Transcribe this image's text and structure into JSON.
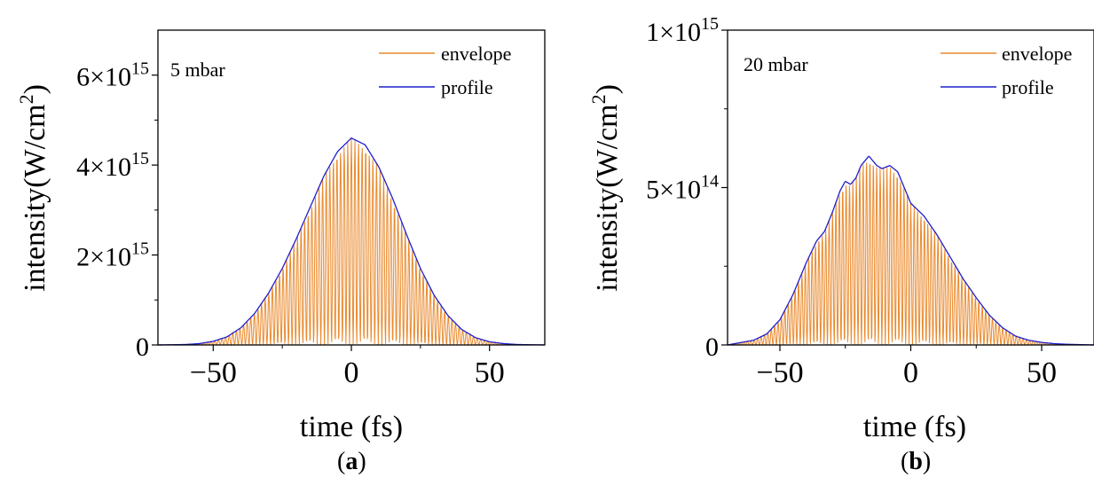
{
  "colors": {
    "envelope": "#E98A2E",
    "profile": "#1F1FCC",
    "axis": "#000000"
  },
  "chart_data": [
    {
      "type": "line",
      "panel_label": "a",
      "annotation": "5 mbar",
      "xlabel": "time (fs)",
      "ylabel": "intensity(W/cm²)",
      "xlim": [
        -70,
        70
      ],
      "ylim": [
        0,
        7000000000000000.0
      ],
      "xticks": [
        {
          "value": -50,
          "label": "−50"
        },
        {
          "value": 0,
          "label": "0"
        },
        {
          "value": 50,
          "label": "50"
        }
      ],
      "yticks": [
        {
          "value": 0,
          "label": "0"
        },
        {
          "value": 2000000000000000.0,
          "base": "2×10",
          "exp": "15"
        },
        {
          "value": 4000000000000000.0,
          "base": "4×10",
          "exp": "15"
        },
        {
          "value": 6000000000000000.0,
          "base": "6×10",
          "exp": "15"
        }
      ],
      "legend": {
        "position": "top-right",
        "entries": [
          "envelope",
          "profile"
        ]
      },
      "series": [
        {
          "name": "envelope",
          "style": "oscillating",
          "carrier_period_fs": 2.6,
          "x": [
            -70,
            -60,
            -55,
            -50,
            -45,
            -40,
            -35,
            -30,
            -25,
            -20,
            -15,
            -10,
            -5,
            0,
            5,
            10,
            15,
            20,
            25,
            30,
            35,
            40,
            45,
            50,
            55,
            60,
            70
          ],
          "y": [
            0,
            10000000000000.0,
            30000000000000.0,
            80000000000000.0,
            180000000000000.0,
            380000000000000.0,
            700000000000000.0,
            1150000000000000.0,
            1700000000000000.0,
            2350000000000000.0,
            3050000000000000.0,
            3750000000000000.0,
            4300000000000000.0,
            4600000000000000.0,
            4450000000000000.0,
            3950000000000000.0,
            3250000000000000.0,
            2450000000000000.0,
            1700000000000000.0,
            1100000000000000.0,
            650000000000000.0,
            340000000000000.0,
            160000000000000.0,
            70000000000000.0,
            30000000000000.0,
            10000000000000.0,
            0
          ]
        },
        {
          "name": "profile",
          "style": "smooth",
          "x": [
            -70,
            -60,
            -55,
            -50,
            -45,
            -40,
            -35,
            -30,
            -25,
            -20,
            -15,
            -10,
            -5,
            0,
            5,
            10,
            15,
            20,
            25,
            30,
            35,
            40,
            45,
            50,
            55,
            60,
            70
          ],
          "y": [
            0,
            10000000000000.0,
            30000000000000.0,
            80000000000000.0,
            180000000000000.0,
            380000000000000.0,
            700000000000000.0,
            1150000000000000.0,
            1700000000000000.0,
            2350000000000000.0,
            3050000000000000.0,
            3750000000000000.0,
            4300000000000000.0,
            4600000000000000.0,
            4450000000000000.0,
            3950000000000000.0,
            3250000000000000.0,
            2450000000000000.0,
            1700000000000000.0,
            1100000000000000.0,
            650000000000000.0,
            340000000000000.0,
            160000000000000.0,
            70000000000000.0,
            30000000000000.0,
            10000000000000.0,
            0
          ]
        }
      ]
    },
    {
      "type": "line",
      "panel_label": "b",
      "annotation": "20 mbar",
      "xlabel": "time (fs)",
      "ylabel": "intensity(W/cm²)",
      "xlim": [
        -70,
        70
      ],
      "ylim": [
        0,
        1000000000000000.0
      ],
      "xticks": [
        {
          "value": -50,
          "label": "−50"
        },
        {
          "value": 0,
          "label": "0"
        },
        {
          "value": 50,
          "label": "50"
        }
      ],
      "yticks": [
        {
          "value": 0,
          "label": "0"
        },
        {
          "value": 500000000000000.0,
          "base": "5×10",
          "exp": "14"
        },
        {
          "value": 1000000000000000.0,
          "base": "1×10",
          "exp": "15"
        }
      ],
      "legend": {
        "position": "top-right",
        "entries": [
          "envelope",
          "profile"
        ]
      },
      "series": [
        {
          "name": "envelope",
          "style": "oscillating",
          "carrier_period_fs": 2.6,
          "x": [
            -70,
            -60,
            -55,
            -50,
            -45,
            -40,
            -36,
            -33,
            -30,
            -27,
            -25,
            -23,
            -21,
            -19,
            -16,
            -13,
            -11,
            -8,
            -5,
            -2,
            0,
            5,
            10,
            15,
            20,
            25,
            30,
            35,
            40,
            45,
            50,
            55,
            60,
            70
          ],
          "y": [
            0,
            15000000000000.0,
            35000000000000.0,
            80000000000000.0,
            160000000000000.0,
            260000000000000.0,
            330000000000000.0,
            360000000000000.0,
            420000000000000.0,
            490000000000000.0,
            520000000000000.0,
            510000000000000.0,
            530000000000000.0,
            570000000000000.0,
            600000000000000.0,
            570000000000000.0,
            560000000000000.0,
            570000000000000.0,
            550000000000000.0,
            490000000000000.0,
            450000000000000.0,
            410000000000000.0,
            350000000000000.0,
            280000000000000.0,
            210000000000000.0,
            150000000000000.0,
            95000000000000.0,
            55000000000000.0,
            28000000000000.0,
            15000000000000.0,
            8000000000000.0,
            4000000000000.0,
            2000000000000.0,
            0
          ]
        },
        {
          "name": "profile",
          "style": "smooth",
          "x": [
            -70,
            -60,
            -55,
            -50,
            -45,
            -40,
            -36,
            -33,
            -30,
            -27,
            -25,
            -23,
            -21,
            -19,
            -16,
            -13,
            -11,
            -8,
            -5,
            -2,
            0,
            5,
            10,
            15,
            20,
            25,
            30,
            35,
            40,
            45,
            50,
            55,
            60,
            70
          ],
          "y": [
            0,
            15000000000000.0,
            35000000000000.0,
            80000000000000.0,
            160000000000000.0,
            260000000000000.0,
            330000000000000.0,
            360000000000000.0,
            420000000000000.0,
            490000000000000.0,
            520000000000000.0,
            510000000000000.0,
            530000000000000.0,
            570000000000000.0,
            600000000000000.0,
            570000000000000.0,
            560000000000000.0,
            570000000000000.0,
            550000000000000.0,
            490000000000000.0,
            450000000000000.0,
            410000000000000.0,
            350000000000000.0,
            280000000000000.0,
            210000000000000.0,
            150000000000000.0,
            95000000000000.0,
            55000000000000.0,
            28000000000000.0,
            15000000000000.0,
            8000000000000.0,
            4000000000000.0,
            2000000000000.0,
            0
          ]
        }
      ]
    }
  ]
}
